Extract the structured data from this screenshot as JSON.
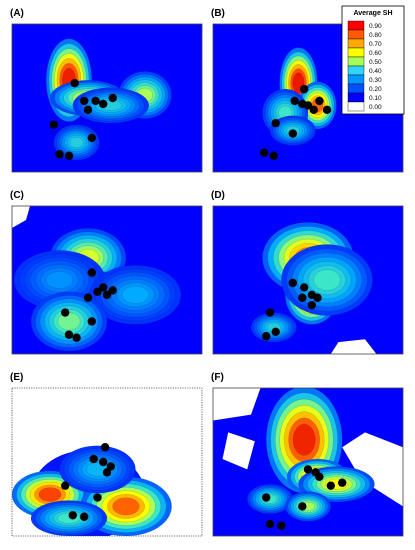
{
  "chart_data": {
    "type": "heatmap",
    "legend": {
      "title": "Average SH",
      "placement": "top-right",
      "ticks": [
        "0.90",
        "0.80",
        "0.70",
        "0.60",
        "0.50",
        "0.40",
        "0.30",
        "0.20",
        "0.10",
        "0.00"
      ],
      "colors": [
        "#ff0000",
        "#ff5a00",
        "#ffaa00",
        "#ffff00",
        "#a6ff59",
        "#32d2ff",
        "#0096ff",
        "#0050ff",
        "#0000ff",
        "#ffffff"
      ]
    },
    "panels": [
      {
        "label": "(A)",
        "background": "#0000ff",
        "hotspots": [
          [
            0.3,
            0.38,
            0.06,
            0.14,
            0.93
          ],
          [
            0.4,
            0.5,
            0.1,
            0.06,
            0.55
          ],
          [
            0.7,
            0.48,
            0.07,
            0.08,
            0.5
          ],
          [
            0.52,
            0.55,
            0.1,
            0.06,
            0.35
          ],
          [
            0.34,
            0.8,
            0.06,
            0.06,
            0.35
          ]
        ],
        "points": [
          [
            0.33,
            0.4
          ],
          [
            0.38,
            0.52
          ],
          [
            0.44,
            0.52
          ],
          [
            0.48,
            0.54
          ],
          [
            0.53,
            0.5
          ],
          [
            0.4,
            0.58
          ],
          [
            0.22,
            0.68
          ],
          [
            0.42,
            0.77
          ],
          [
            0.25,
            0.88
          ],
          [
            0.3,
            0.89
          ]
        ]
      },
      {
        "label": "(B)",
        "background": "#0000ff",
        "hotspots": [
          [
            0.45,
            0.4,
            0.05,
            0.12,
            0.95
          ],
          [
            0.55,
            0.55,
            0.05,
            0.08,
            0.8
          ],
          [
            0.38,
            0.6,
            0.06,
            0.08,
            0.4
          ],
          [
            0.42,
            0.72,
            0.06,
            0.05,
            0.35
          ]
        ],
        "points": [
          [
            0.48,
            0.44
          ],
          [
            0.43,
            0.52
          ],
          [
            0.47,
            0.54
          ],
          [
            0.5,
            0.55
          ],
          [
            0.53,
            0.58
          ],
          [
            0.56,
            0.52
          ],
          [
            0.6,
            0.58
          ],
          [
            0.33,
            0.67
          ],
          [
            0.42,
            0.74
          ],
          [
            0.27,
            0.87
          ],
          [
            0.32,
            0.89
          ]
        ]
      },
      {
        "label": "(C)",
        "background": "#0000ff",
        "hotspots": [
          [
            0.4,
            0.35,
            0.1,
            0.1,
            0.55
          ],
          [
            0.45,
            0.6,
            0.08,
            0.08,
            0.65
          ],
          [
            0.25,
            0.5,
            0.12,
            0.1,
            0.25
          ],
          [
            0.65,
            0.6,
            0.12,
            0.1,
            0.28
          ],
          [
            0.3,
            0.78,
            0.1,
            0.1,
            0.45
          ]
        ],
        "points": [
          [
            0.42,
            0.45
          ],
          [
            0.48,
            0.55
          ],
          [
            0.45,
            0.58
          ],
          [
            0.5,
            0.6
          ],
          [
            0.53,
            0.57
          ],
          [
            0.4,
            0.62
          ],
          [
            0.28,
            0.72
          ],
          [
            0.42,
            0.78
          ],
          [
            0.3,
            0.87
          ],
          [
            0.34,
            0.89
          ]
        ]
      },
      {
        "label": "(D)",
        "background": "#0000ff",
        "hotspots": [
          [
            0.5,
            0.35,
            0.12,
            0.12,
            0.75
          ],
          [
            0.52,
            0.6,
            0.07,
            0.1,
            0.92
          ],
          [
            0.6,
            0.5,
            0.12,
            0.12,
            0.4
          ],
          [
            0.32,
            0.82,
            0.06,
            0.05,
            0.35
          ]
        ],
        "points": [
          [
            0.42,
            0.52
          ],
          [
            0.48,
            0.55
          ],
          [
            0.47,
            0.62
          ],
          [
            0.52,
            0.6
          ],
          [
            0.55,
            0.62
          ],
          [
            0.52,
            0.67
          ],
          [
            0.3,
            0.72
          ],
          [
            0.33,
            0.85
          ],
          [
            0.28,
            0.88
          ]
        ]
      },
      {
        "label": "(E)",
        "background": "#ffffff",
        "hotspots": [
          [
            0.2,
            0.72,
            0.1,
            0.08,
            0.85
          ],
          [
            0.6,
            0.8,
            0.12,
            0.1,
            0.8
          ],
          [
            0.45,
            0.55,
            0.1,
            0.08,
            0.3
          ],
          [
            0.3,
            0.88,
            0.1,
            0.06,
            0.4
          ]
        ],
        "points": [
          [
            0.49,
            0.4
          ],
          [
            0.43,
            0.48
          ],
          [
            0.48,
            0.5
          ],
          [
            0.52,
            0.53
          ],
          [
            0.5,
            0.57
          ],
          [
            0.28,
            0.66
          ],
          [
            0.45,
            0.74
          ],
          [
            0.32,
            0.86
          ],
          [
            0.38,
            0.87
          ]
        ]
      },
      {
        "label": "(F)",
        "background": "#0000ff",
        "hotspots": [
          [
            0.48,
            0.35,
            0.1,
            0.18,
            0.92
          ],
          [
            0.55,
            0.6,
            0.08,
            0.06,
            0.8
          ],
          [
            0.65,
            0.65,
            0.1,
            0.06,
            0.6
          ],
          [
            0.3,
            0.75,
            0.06,
            0.05,
            0.4
          ],
          [
            0.5,
            0.8,
            0.06,
            0.05,
            0.5
          ]
        ],
        "points": [
          [
            0.5,
            0.55
          ],
          [
            0.54,
            0.57
          ],
          [
            0.56,
            0.6
          ],
          [
            0.62,
            0.66
          ],
          [
            0.68,
            0.64
          ],
          [
            0.28,
            0.74
          ],
          [
            0.47,
            0.8
          ],
          [
            0.3,
            0.92
          ],
          [
            0.36,
            0.93
          ]
        ]
      }
    ]
  }
}
